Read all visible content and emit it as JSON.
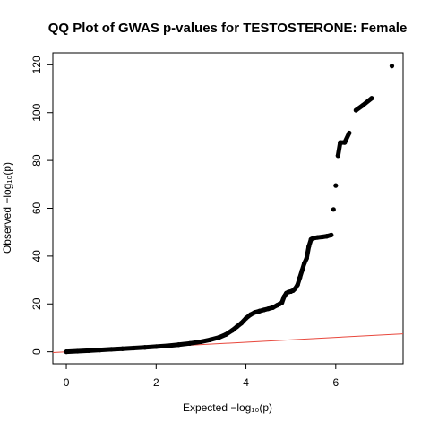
{
  "chart_data": {
    "type": "scatter",
    "title": "QQ Plot of GWAS p-values for TESTOSTERONE: Female",
    "xlabel": "Expected  −log₁₀(p)",
    "ylabel": "Observed  −log₁₀(p)",
    "xlim": [
      -0.3,
      7.5
    ],
    "ylim": [
      -5,
      125
    ],
    "xticks": [
      0,
      2,
      4,
      6
    ],
    "yticks": [
      0,
      20,
      40,
      60,
      80,
      100,
      120
    ],
    "grid": false,
    "legend": "none",
    "point_color": "#000000",
    "reference_line": {
      "label": "y = x",
      "color": "#e8473c",
      "from": [
        -0.3,
        -0.3
      ],
      "to": [
        7.5,
        7.5
      ]
    },
    "series": [
      {
        "values_xy": [
          [
            0.0,
            0.0
          ],
          [
            0.25,
            0.25
          ],
          [
            0.5,
            0.5
          ],
          [
            0.75,
            0.76
          ],
          [
            1.0,
            1.02
          ],
          [
            1.25,
            1.28
          ],
          [
            1.5,
            1.55
          ],
          [
            1.75,
            1.83
          ],
          [
            2.0,
            2.15
          ],
          [
            2.25,
            2.5
          ],
          [
            2.5,
            2.95
          ],
          [
            2.75,
            3.5
          ],
          [
            3.0,
            4.2
          ],
          [
            3.2,
            5.0
          ],
          [
            3.4,
            6.0
          ],
          [
            3.55,
            7.2
          ],
          [
            3.7,
            9.0
          ],
          [
            3.8,
            10.5
          ],
          [
            3.9,
            12.0
          ],
          [
            4.0,
            14.0
          ],
          [
            4.1,
            15.5
          ],
          [
            4.2,
            16.5
          ],
          [
            4.3,
            17.0
          ],
          [
            4.4,
            17.5
          ],
          [
            4.5,
            18.0
          ],
          [
            4.6,
            18.5
          ],
          [
            4.7,
            19.5
          ],
          [
            4.75,
            20.0
          ],
          [
            4.8,
            20.5
          ],
          [
            4.85,
            23.0
          ],
          [
            4.9,
            24.5
          ],
          [
            4.95,
            25.0
          ],
          [
            5.0,
            25.2
          ],
          [
            5.05,
            25.6
          ],
          [
            5.1,
            26.5
          ],
          [
            5.15,
            28.0
          ],
          [
            5.2,
            31.0
          ],
          [
            5.25,
            34.0
          ],
          [
            5.3,
            37.0
          ],
          [
            5.35,
            39.0
          ],
          [
            5.4,
            44.0
          ],
          [
            5.45,
            47.0
          ],
          [
            5.5,
            47.5
          ],
          [
            5.6,
            47.8
          ],
          [
            5.7,
            48.0
          ],
          [
            5.8,
            48.3
          ],
          [
            5.9,
            48.8
          ],
          [
            5.95,
            59.5
          ],
          [
            6.0,
            69.5
          ],
          [
            6.05,
            82.0
          ],
          [
            6.1,
            87.5
          ],
          [
            6.2,
            87.5
          ],
          [
            6.3,
            91.5
          ],
          [
            6.45,
            101.0
          ],
          [
            6.6,
            103.0
          ],
          [
            6.8,
            106.0
          ],
          [
            7.25,
            119.5
          ]
        ]
      }
    ]
  }
}
